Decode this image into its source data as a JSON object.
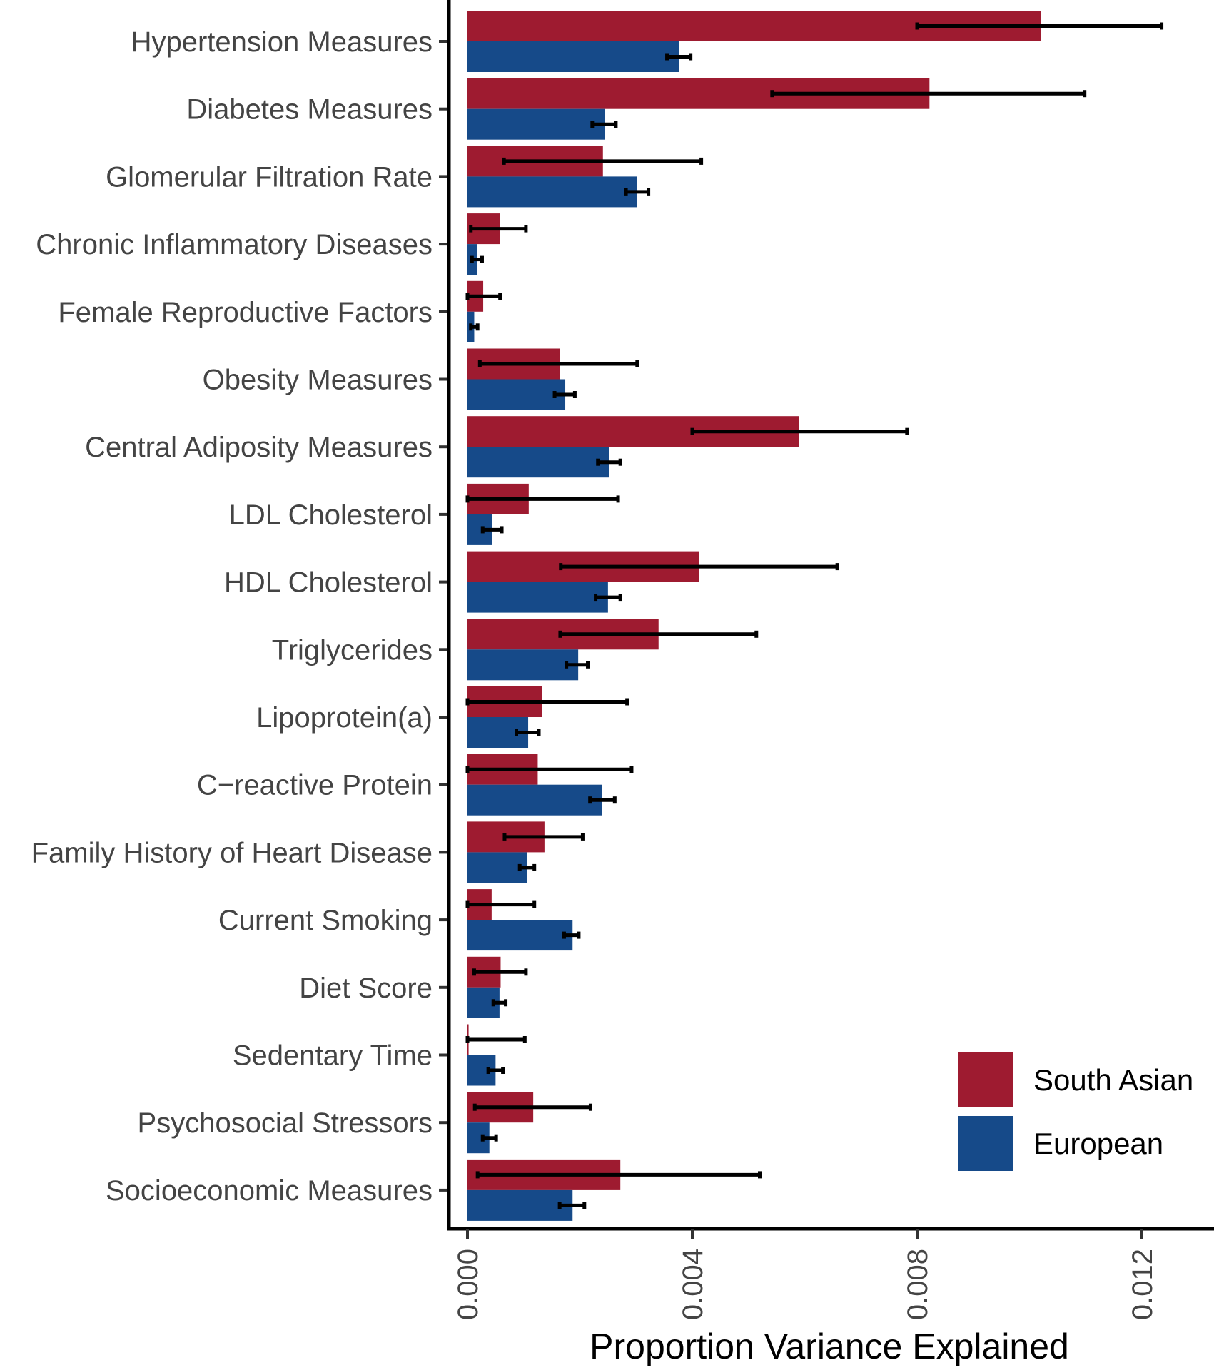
{
  "chart_data": {
    "type": "bar",
    "orientation": "horizontal",
    "title": "",
    "xlabel": "Proportion Variance Explained",
    "ylabel": "",
    "xlim": [
      0,
      0.0132
    ],
    "xticks": [
      0.0,
      0.004,
      0.008,
      0.012
    ],
    "xtick_labels": [
      "0.000",
      "0.004",
      "0.008",
      "0.012"
    ],
    "grid": false,
    "legend_position": "bottom-right",
    "categories": [
      "Hypertension Measures",
      "Diabetes Measures",
      "Glomerular Filtration Rate",
      "Chronic Inflammatory Diseases",
      "Female Reproductive Factors",
      "Obesity Measures",
      "Central Adiposity Measures",
      "LDL Cholesterol",
      "HDL Cholesterol",
      "Triglycerides",
      "Lipoprotein(a)",
      "C−reactive Protein",
      "Family History of Heart Disease",
      "Current Smoking",
      "Diet Score",
      "Sedentary Time",
      "Psychosocial Stressors",
      "Socioeconomic Measures"
    ],
    "series": [
      {
        "name": "South Asian",
        "color": "#9E1B30",
        "values": [
          0.0102,
          0.00822,
          0.00241,
          0.00058,
          0.00028,
          0.00165,
          0.0059,
          0.00109,
          0.00412,
          0.0034,
          0.00133,
          0.00125,
          0.00137,
          0.00043,
          0.00059,
          2e-05,
          0.00117,
          0.00272
        ],
        "err_low": [
          0.008,
          0.00542,
          0.00065,
          6e-05,
          0.0,
          0.00022,
          0.004,
          0.0,
          0.00166,
          0.00165,
          0.0,
          0.0,
          0.00066,
          0.0,
          0.00012,
          0.0,
          0.00013,
          0.00018
        ],
        "err_high": [
          0.01235,
          0.01098,
          0.00416,
          0.00104,
          0.00058,
          0.00302,
          0.00782,
          0.00268,
          0.00658,
          0.00514,
          0.00284,
          0.00292,
          0.00205,
          0.00119,
          0.00104,
          0.00102,
          0.00219,
          0.0052
        ]
      },
      {
        "name": "European",
        "color": "#164A89",
        "values": [
          0.00377,
          0.00244,
          0.00302,
          0.00017,
          0.00012,
          0.00174,
          0.00252,
          0.00044,
          0.0025,
          0.00197,
          0.00108,
          0.0024,
          0.00106,
          0.00187,
          0.00057,
          0.0005,
          0.00039,
          0.00187
        ],
        "err_low": [
          0.00355,
          0.00222,
          0.00282,
          8e-05,
          6e-05,
          0.00155,
          0.00232,
          0.00027,
          0.00228,
          0.00176,
          0.00087,
          0.00218,
          0.00093,
          0.00172,
          0.00046,
          0.00037,
          0.00027,
          0.00164
        ],
        "err_high": [
          0.00397,
          0.00264,
          0.00322,
          0.00026,
          0.00018,
          0.00191,
          0.00272,
          0.00061,
          0.00272,
          0.00214,
          0.00127,
          0.00262,
          0.00119,
          0.00198,
          0.00068,
          0.00063,
          0.00051,
          0.00208
        ]
      }
    ]
  }
}
